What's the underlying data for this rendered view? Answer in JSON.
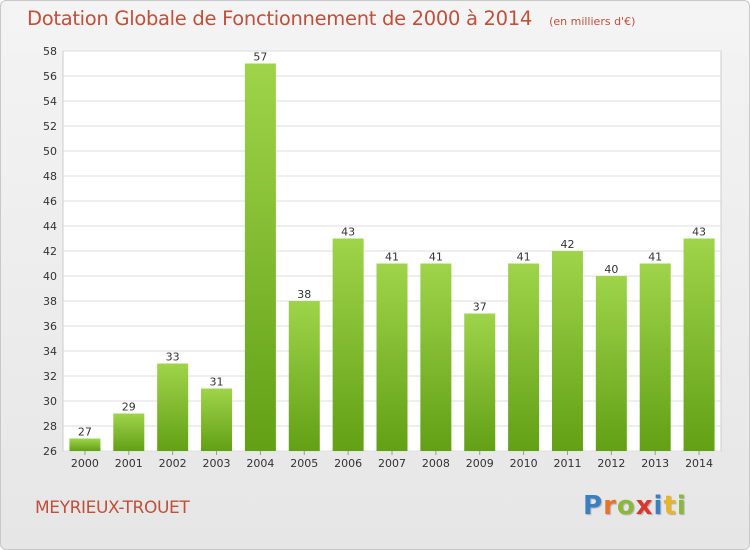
{
  "title": "Dotation Globale de Fonctionnement de 2000 à 2014",
  "unit": "(en milliers d'€)",
  "commune": "MEYRIEUX-TROUET",
  "logo": {
    "text": "Proxiti",
    "letters": [
      {
        "char": "P",
        "color": "#3a7fc1"
      },
      {
        "char": "r",
        "color": "#e8742a"
      },
      {
        "char": "o",
        "color": "#8ab83a"
      },
      {
        "char": "x",
        "color": "#d8392c"
      },
      {
        "char": "i",
        "color": "#3a7fc1"
      },
      {
        "char": "t",
        "color": "#e8b52a"
      },
      {
        "char": "i",
        "color": "#8ab83a"
      }
    ]
  },
  "chart_data": {
    "type": "bar",
    "categories": [
      "2000",
      "2001",
      "2002",
      "2003",
      "2004",
      "2005",
      "2006",
      "2007",
      "2008",
      "2009",
      "2010",
      "2011",
      "2012",
      "2013",
      "2014"
    ],
    "values": [
      27,
      29,
      33,
      31,
      57,
      38,
      43,
      41,
      41,
      37,
      41,
      42,
      40,
      41,
      43
    ],
    "ylim": [
      26,
      58
    ],
    "yticks": [
      26,
      28,
      30,
      32,
      34,
      36,
      38,
      40,
      42,
      44,
      46,
      48,
      50,
      52,
      54,
      56,
      58
    ],
    "grid": true,
    "bar_color_light": "#9fd44a",
    "bar_color_dark": "#62a016"
  }
}
